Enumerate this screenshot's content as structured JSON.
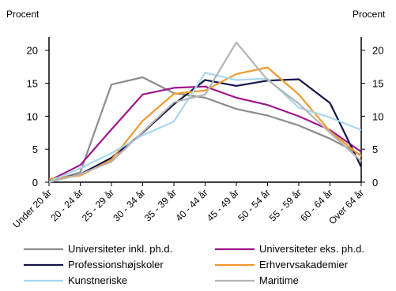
{
  "chart_data": {
    "type": "line",
    "ylabel_left": "Procent",
    "ylabel_right": "Procent",
    "ylim": [
      0,
      22
    ],
    "yticks": [
      0,
      5,
      10,
      15,
      20
    ],
    "grid": false,
    "legend_position": "bottom",
    "categories": [
      "Under 20 år",
      "20 - 24 år",
      "25 - 29 år",
      "30 - 34 år",
      "35 - 39 år",
      "40 - 44 år",
      "45 - 49 år",
      "50 - 54 år",
      "55 - 59 år",
      "60 - 64 år",
      "Over 64 år"
    ],
    "series": [
      {
        "name": "Universiteter inkl. ph.d.",
        "color": "#8c8c8c",
        "values": [
          0.1,
          1.5,
          14.8,
          15.9,
          13.5,
          12.8,
          11.1,
          10.1,
          8.6,
          6.6,
          4.1
        ]
      },
      {
        "name": "Universiteter eks. ph.d.",
        "color": "#a0168c",
        "values": [
          0.2,
          2.6,
          8.0,
          13.3,
          14.3,
          14.5,
          12.8,
          11.7,
          10.0,
          7.9,
          4.6
        ]
      },
      {
        "name": "Professionshøjskoler",
        "color": "#14144b",
        "values": [
          0.2,
          1.2,
          3.7,
          7.5,
          11.8,
          15.5,
          14.6,
          15.4,
          15.6,
          12.0,
          2.3
        ]
      },
      {
        "name": "Erhvervsakademier",
        "color": "#f39a2d",
        "values": [
          0.5,
          1.0,
          3.4,
          9.3,
          13.4,
          13.9,
          16.4,
          17.4,
          13.3,
          7.7,
          3.9
        ]
      },
      {
        "name": "Kunstneriske",
        "color": "#a8d8ef",
        "values": [
          0.1,
          2.1,
          4.4,
          7.1,
          9.2,
          16.6,
          15.5,
          15.7,
          11.3,
          9.8,
          7.9
        ]
      },
      {
        "name": "Maritime",
        "color": "#b4b4b4",
        "values": [
          0.0,
          1.2,
          3.1,
          7.6,
          12.1,
          13.3,
          21.2,
          15.5,
          11.9,
          7.5,
          3.2
        ]
      }
    ]
  }
}
